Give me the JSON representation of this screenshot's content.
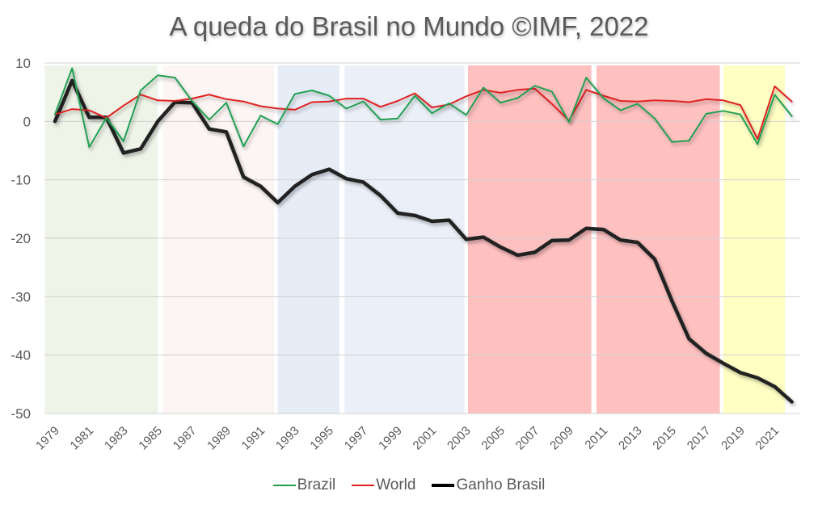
{
  "chart_data": {
    "type": "line",
    "title": "A queda do Brasil no Mundo ©IMF, 2022",
    "xlabel": "",
    "ylabel": "",
    "ylim": [
      -50,
      10
    ],
    "yticks": [
      10,
      0,
      -10,
      -20,
      -30,
      -40,
      -50
    ],
    "grid": true,
    "legend_position": "bottom",
    "x": [
      1979,
      1980,
      1981,
      1982,
      1983,
      1984,
      1985,
      1986,
      1987,
      1988,
      1989,
      1990,
      1991,
      1992,
      1993,
      1994,
      1995,
      1996,
      1997,
      1998,
      1999,
      2000,
      2001,
      2002,
      2003,
      2004,
      2005,
      2006,
      2007,
      2008,
      2009,
      2010,
      2011,
      2012,
      2013,
      2014,
      2015,
      2016,
      2017,
      2018,
      2019,
      2020,
      2021,
      2022
    ],
    "xtick_labels": [
      "1979",
      "1981",
      "1983",
      "1985",
      "1987",
      "1989",
      "1991",
      "1993",
      "1995",
      "1997",
      "1999",
      "2001",
      "2003",
      "2005",
      "2007",
      "2009",
      "2011",
      "2013",
      "2015",
      "2017",
      "2019",
      "2021"
    ],
    "series": [
      {
        "name": "Brazil",
        "color": "#22a052",
        "values": [
          1.2,
          9.1,
          -4.4,
          0.6,
          -3.4,
          5.3,
          7.9,
          7.5,
          3.5,
          0.3,
          3.2,
          -4.3,
          1.0,
          -0.5,
          4.7,
          5.3,
          4.4,
          2.2,
          3.4,
          0.3,
          0.5,
          4.4,
          1.4,
          3.1,
          1.1,
          5.8,
          3.2,
          4.0,
          6.1,
          5.1,
          -0.1,
          7.5,
          4.0,
          1.9,
          3.0,
          0.5,
          -3.5,
          -3.3,
          1.3,
          1.8,
          1.2,
          -3.9,
          4.6,
          0.9
        ]
      },
      {
        "name": "World",
        "color": "#e02020",
        "values": [
          1.2,
          2.1,
          1.9,
          0.6,
          2.7,
          4.6,
          3.6,
          3.5,
          3.9,
          4.6,
          3.8,
          3.4,
          2.6,
          2.2,
          2.0,
          3.3,
          3.4,
          3.9,
          3.9,
          2.5,
          3.5,
          4.8,
          2.4,
          2.9,
          4.3,
          5.4,
          4.9,
          5.4,
          5.6,
          3.0,
          0.1,
          5.4,
          4.4,
          3.5,
          3.4,
          3.6,
          3.5,
          3.3,
          3.8,
          3.6,
          2.8,
          -3.0,
          6.0,
          3.4
        ]
      },
      {
        "name": "Ganho Brasil",
        "color": "#000000",
        "values": [
          0.0,
          7.0,
          0.7,
          0.7,
          -5.4,
          -4.7,
          0.0,
          3.3,
          3.2,
          -1.3,
          -1.8,
          -9.5,
          -11.1,
          -13.9,
          -11.1,
          -9.1,
          -8.2,
          -9.8,
          -10.4,
          -12.7,
          -15.7,
          -16.1,
          -17.1,
          -16.9,
          -20.2,
          -19.8,
          -21.5,
          -22.9,
          -22.4,
          -20.4,
          -20.3,
          -18.3,
          -18.5,
          -20.3,
          -20.7,
          -23.6,
          -30.7,
          -37.2,
          -39.7,
          -41.4,
          -43.0,
          -43.9,
          -45.4,
          -48.0
        ]
      }
    ],
    "bands": [
      {
        "from": 1978.4,
        "to": 1985.0,
        "color": "#eef4e8"
      },
      {
        "from": 1985.3,
        "to": 1991.8,
        "color": "#fcf5f3"
      },
      {
        "from": 1992.0,
        "to": 1995.6,
        "color": "#e6edf7"
      },
      {
        "from": 1995.9,
        "to": 2002.9,
        "color": "#ebf0f8"
      },
      {
        "from": 2003.1,
        "to": 2010.3,
        "color": "#ffc0c0"
      },
      {
        "from": 2010.6,
        "to": 2017.8,
        "color": "#ffc0c0"
      },
      {
        "from": 2018.0,
        "to": 2021.6,
        "color": "#ffffc4"
      }
    ]
  }
}
